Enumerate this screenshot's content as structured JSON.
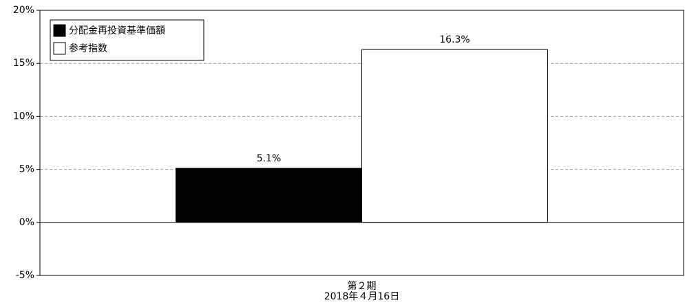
{
  "chart_data": {
    "type": "bar",
    "categories": [
      [
        "第２期",
        "2018年４月16日"
      ]
    ],
    "series": [
      {
        "name": "分配金再投資基準価額",
        "color": "#000000",
        "values": [
          5.1
        ],
        "value_labels": [
          "5.1%"
        ]
      },
      {
        "name": "参考指数",
        "color": "#ffffff",
        "values": [
          16.3
        ],
        "value_labels": [
          "16.3%"
        ]
      }
    ],
    "ylim": [
      -5,
      20
    ],
    "yticks": [
      {
        "value": -5,
        "label": "-5%"
      },
      {
        "value": 0,
        "label": "0%"
      },
      {
        "value": 5,
        "label": "5%"
      },
      {
        "value": 10,
        "label": "10%"
      },
      {
        "value": 15,
        "label": "15%"
      },
      {
        "value": 20,
        "label": "20%"
      }
    ],
    "grid": true,
    "legend": "top-left"
  }
}
